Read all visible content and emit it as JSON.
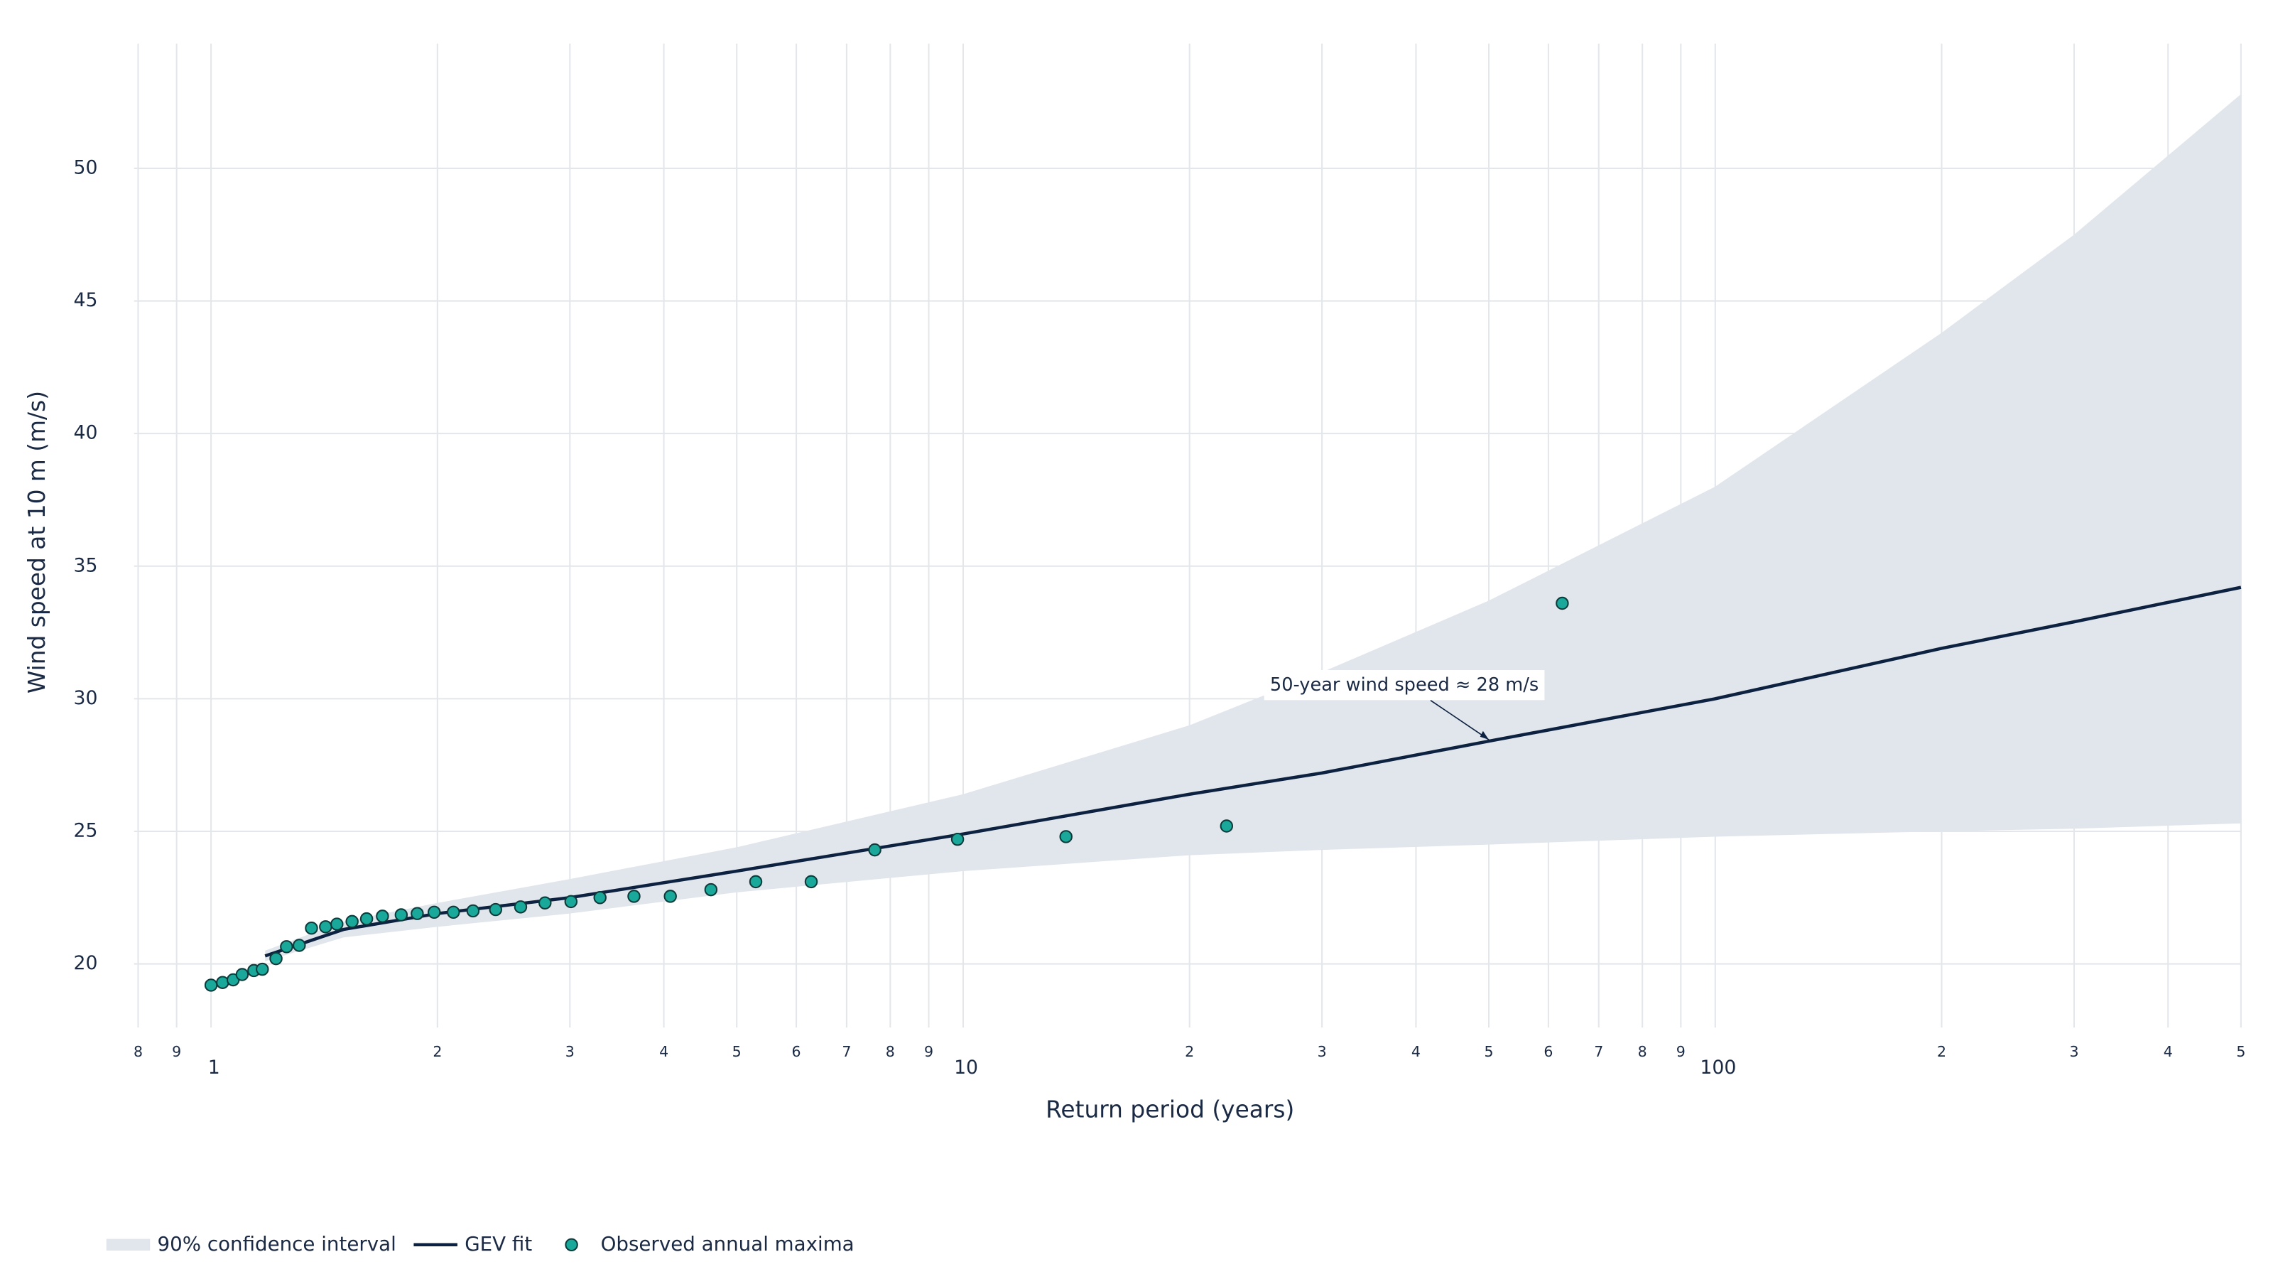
{
  "chart_data": {
    "type": "line",
    "x_label": "Return period (years)",
    "y_label": "Wind speed at 10 m (m/s)",
    "xscale": "log",
    "xlim": [
      0.79,
      500
    ],
    "ylim": [
      17.6,
      54.7
    ],
    "xticks": [
      {
        "value": 0.8,
        "label": "8"
      },
      {
        "value": 0.9,
        "label": "9"
      },
      1,
      2,
      3,
      4,
      5,
      6,
      7,
      8,
      9,
      10,
      {
        "value": 20,
        "label": "2"
      },
      {
        "value": 30,
        "label": "3"
      },
      {
        "value": 40,
        "label": "4"
      },
      {
        "value": 50,
        "label": "5"
      },
      {
        "value": 60,
        "label": "6"
      },
      {
        "value": 70,
        "label": "7"
      },
      {
        "value": 80,
        "label": "8"
      },
      {
        "value": 90,
        "label": "9"
      },
      100,
      {
        "value": 200,
        "label": "2"
      },
      {
        "value": 300,
        "label": "3"
      },
      {
        "value": 400,
        "label": "4"
      },
      {
        "value": 500,
        "label": "5"
      }
    ],
    "yticks": [
      20,
      25,
      30,
      35,
      40,
      45,
      50
    ],
    "grid": true,
    "legend": "bottom-left",
    "series": [
      {
        "name": "90% confidence interval",
        "type": "band",
        "color": "#e1e6ec",
        "x": [
          1.18,
          1.5,
          2,
          3,
          5,
          10,
          20,
          30,
          50,
          100,
          200,
          300,
          500
        ],
        "upper": [
          20.5,
          21.6,
          22.3,
          23.2,
          24.4,
          26.4,
          29.0,
          31.0,
          33.7,
          38.0,
          43.8,
          47.5,
          52.8
        ],
        "lower": [
          20.1,
          21.0,
          21.4,
          21.9,
          22.7,
          23.5,
          24.1,
          24.3,
          24.5,
          24.8,
          25.0,
          25.1,
          25.3
        ]
      },
      {
        "name": "GEV fit",
        "type": "line",
        "color": "#0d2240",
        "x": [
          1.18,
          1.5,
          2,
          3,
          5,
          10,
          20,
          30,
          50,
          100,
          200,
          300,
          500
        ],
        "values": [
          20.3,
          21.3,
          21.9,
          22.5,
          23.5,
          24.9,
          26.4,
          27.2,
          28.4,
          30.0,
          31.9,
          32.9,
          34.2
        ]
      },
      {
        "name": "Observed annual maxima",
        "type": "scatter",
        "color": "#1aa89a",
        "edgecolor": "#0d3a3a",
        "x": [
          1.0,
          1.036,
          1.07,
          1.1,
          1.14,
          1.17,
          1.22,
          1.26,
          1.31,
          1.36,
          1.42,
          1.47,
          1.54,
          1.61,
          1.69,
          1.79,
          1.88,
          1.98,
          2.1,
          2.23,
          2.39,
          2.58,
          2.78,
          3.01,
          3.29,
          3.65,
          4.08,
          4.62,
          5.3,
          6.28,
          7.63,
          9.83,
          13.7,
          22.4,
          62.6
        ],
        "values": [
          19.2,
          19.3,
          19.4,
          19.6,
          19.75,
          19.8,
          20.2,
          20.65,
          20.7,
          21.35,
          21.4,
          21.5,
          21.6,
          21.7,
          21.8,
          21.85,
          21.9,
          21.95,
          21.95,
          22.0,
          22.05,
          22.15,
          22.3,
          22.35,
          22.5,
          22.55,
          22.55,
          22.8,
          23.1,
          23.1,
          24.3,
          24.7,
          24.8,
          25.2,
          33.6
        ]
      }
    ],
    "annotations": [
      {
        "text": "50-year wind speed ≈ 28 m/s",
        "x": 50,
        "y": 28.4
      }
    ]
  }
}
